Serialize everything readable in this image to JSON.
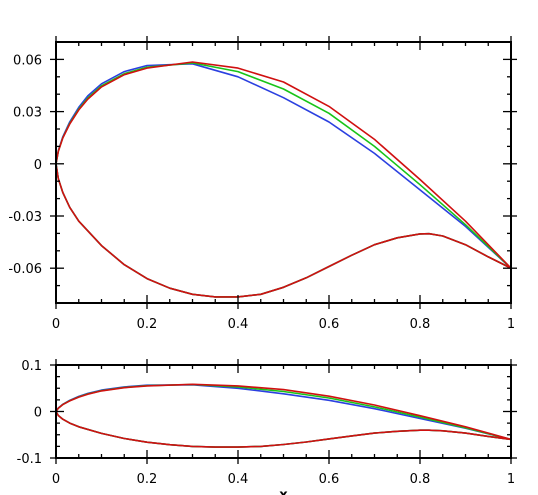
{
  "chart_data": [
    {
      "type": "line",
      "title": "",
      "xlabel": "",
      "ylabel": "",
      "xlim": [
        0,
        1
      ],
      "ylim": [
        -0.08,
        0.07
      ],
      "xticks": [
        0,
        0.2,
        0.4,
        0.6,
        0.8,
        1
      ],
      "xtick_labels": [
        "0",
        "0.2",
        "0.4",
        "0.6",
        "0.8",
        "1"
      ],
      "yticks": [
        -0.06,
        -0.03,
        0,
        0.03,
        0.06
      ],
      "ytick_labels": [
        "-0.06",
        "-0.03",
        "0",
        "0.03",
        "0.06"
      ],
      "grid": false,
      "series": [
        {
          "color": "#2b40e0",
          "x": [
            1,
            0.9,
            0.8,
            0.7,
            0.6,
            0.5,
            0.4,
            0.3,
            0.2,
            0.15,
            0.1,
            0.07,
            0.05,
            0.03,
            0.015,
            0.005,
            0,
            0.005,
            0.015,
            0.03,
            0.05,
            0.1,
            0.15,
            0.2,
            0.25,
            0.3,
            0.35,
            0.4,
            0.45,
            0.5,
            0.55,
            0.6,
            0.65,
            0.7,
            0.75,
            0.8,
            0.82,
            0.85,
            0.9,
            0.95,
            1
          ],
          "y": [
            -0.06,
            -0.036,
            -0.015,
            0.006,
            0.024,
            0.038,
            0.05,
            0.0575,
            0.0565,
            0.053,
            0.046,
            0.039,
            0.0325,
            0.024,
            0.0155,
            0.0075,
            0,
            -0.0085,
            -0.0165,
            -0.025,
            -0.033,
            -0.047,
            -0.058,
            -0.066,
            -0.0715,
            -0.075,
            -0.0765,
            -0.0765,
            -0.075,
            -0.071,
            -0.0655,
            -0.059,
            -0.0525,
            -0.0465,
            -0.0425,
            -0.0403,
            -0.0402,
            -0.0415,
            -0.0465,
            -0.0535,
            -0.06
          ]
        },
        {
          "color": "#18c418",
          "x": [
            1,
            0.9,
            0.8,
            0.7,
            0.6,
            0.5,
            0.4,
            0.3,
            0.2,
            0.15,
            0.1,
            0.07,
            0.05,
            0.03,
            0.015,
            0.005,
            0,
            0.005,
            0.015,
            0.03,
            0.05,
            0.1,
            0.15,
            0.2,
            0.25,
            0.3,
            0.35,
            0.4,
            0.45,
            0.5,
            0.55,
            0.6,
            0.65,
            0.7,
            0.75,
            0.8,
            0.82,
            0.85,
            0.9,
            0.95,
            1
          ],
          "y": [
            -0.06,
            -0.035,
            -0.012,
            0.01,
            0.029,
            0.043,
            0.053,
            0.058,
            0.0555,
            0.0518,
            0.0448,
            0.0378,
            0.0315,
            0.0232,
            0.015,
            0.0072,
            0,
            -0.0085,
            -0.0165,
            -0.025,
            -0.033,
            -0.047,
            -0.058,
            -0.066,
            -0.0715,
            -0.075,
            -0.0765,
            -0.0765,
            -0.075,
            -0.071,
            -0.0655,
            -0.059,
            -0.0525,
            -0.0465,
            -0.0425,
            -0.0403,
            -0.0402,
            -0.0415,
            -0.0465,
            -0.0535,
            -0.06
          ]
        },
        {
          "color": "#d01010",
          "x": [
            1,
            0.9,
            0.8,
            0.7,
            0.6,
            0.5,
            0.4,
            0.3,
            0.2,
            0.15,
            0.1,
            0.07,
            0.05,
            0.03,
            0.015,
            0.005,
            0,
            0.005,
            0.015,
            0.03,
            0.05,
            0.1,
            0.15,
            0.2,
            0.25,
            0.3,
            0.35,
            0.4,
            0.45,
            0.5,
            0.55,
            0.6,
            0.65,
            0.7,
            0.75,
            0.8,
            0.82,
            0.85,
            0.9,
            0.95,
            1
          ],
          "y": [
            -0.06,
            -0.033,
            -0.009,
            0.014,
            0.033,
            0.047,
            0.055,
            0.0585,
            0.055,
            0.0512,
            0.0442,
            0.0372,
            0.031,
            0.0228,
            0.0148,
            0.0071,
            0,
            -0.0085,
            -0.0165,
            -0.025,
            -0.033,
            -0.047,
            -0.058,
            -0.066,
            -0.0715,
            -0.075,
            -0.0765,
            -0.0765,
            -0.075,
            -0.071,
            -0.0655,
            -0.059,
            -0.0525,
            -0.0465,
            -0.0425,
            -0.0403,
            -0.0402,
            -0.0415,
            -0.0465,
            -0.0535,
            -0.06
          ]
        }
      ]
    },
    {
      "type": "line",
      "title": "",
      "xlabel": "x",
      "ylabel": "",
      "xlim": [
        0,
        1
      ],
      "ylim": [
        -0.1,
        0.1
      ],
      "xticks": [
        0,
        0.2,
        0.4,
        0.6,
        0.8,
        1
      ],
      "xtick_labels": [
        "0",
        "0.2",
        "0.4",
        "0.6",
        "0.8",
        "1"
      ],
      "yticks": [
        -0.1,
        0,
        0.1
      ],
      "ytick_labels": [
        "-0.1",
        "0",
        "0.1"
      ],
      "grid": false,
      "series": [
        {
          "color": "#2b40e0",
          "x": [
            1,
            0.9,
            0.8,
            0.7,
            0.6,
            0.5,
            0.4,
            0.3,
            0.2,
            0.15,
            0.1,
            0.07,
            0.05,
            0.03,
            0.015,
            0.005,
            0,
            0.005,
            0.015,
            0.03,
            0.05,
            0.1,
            0.15,
            0.2,
            0.25,
            0.3,
            0.35,
            0.4,
            0.45,
            0.5,
            0.55,
            0.6,
            0.65,
            0.7,
            0.75,
            0.8,
            0.82,
            0.85,
            0.9,
            0.95,
            1
          ],
          "y": [
            -0.06,
            -0.036,
            -0.015,
            0.006,
            0.024,
            0.038,
            0.05,
            0.0575,
            0.0565,
            0.053,
            0.046,
            0.039,
            0.0325,
            0.024,
            0.0155,
            0.0075,
            0,
            -0.0085,
            -0.0165,
            -0.025,
            -0.033,
            -0.047,
            -0.058,
            -0.066,
            -0.0715,
            -0.075,
            -0.0765,
            -0.0765,
            -0.075,
            -0.071,
            -0.0655,
            -0.059,
            -0.0525,
            -0.0465,
            -0.0425,
            -0.0403,
            -0.0402,
            -0.0415,
            -0.0465,
            -0.0535,
            -0.06
          ]
        },
        {
          "color": "#18c418",
          "x": [
            1,
            0.9,
            0.8,
            0.7,
            0.6,
            0.5,
            0.4,
            0.3,
            0.2,
            0.15,
            0.1,
            0.07,
            0.05,
            0.03,
            0.015,
            0.005,
            0,
            0.005,
            0.015,
            0.03,
            0.05,
            0.1,
            0.15,
            0.2,
            0.25,
            0.3,
            0.35,
            0.4,
            0.45,
            0.5,
            0.55,
            0.6,
            0.65,
            0.7,
            0.75,
            0.8,
            0.82,
            0.85,
            0.9,
            0.95,
            1
          ],
          "y": [
            -0.06,
            -0.035,
            -0.012,
            0.01,
            0.029,
            0.043,
            0.053,
            0.058,
            0.0555,
            0.0518,
            0.0448,
            0.0378,
            0.0315,
            0.0232,
            0.015,
            0.0072,
            0,
            -0.0085,
            -0.0165,
            -0.025,
            -0.033,
            -0.047,
            -0.058,
            -0.066,
            -0.0715,
            -0.075,
            -0.0765,
            -0.0765,
            -0.075,
            -0.071,
            -0.0655,
            -0.059,
            -0.0525,
            -0.0465,
            -0.0425,
            -0.0403,
            -0.0402,
            -0.0415,
            -0.0465,
            -0.0535,
            -0.06
          ]
        },
        {
          "color": "#d01010",
          "x": [
            1,
            0.9,
            0.8,
            0.7,
            0.6,
            0.5,
            0.4,
            0.3,
            0.2,
            0.15,
            0.1,
            0.07,
            0.05,
            0.03,
            0.015,
            0.005,
            0,
            0.005,
            0.015,
            0.03,
            0.05,
            0.1,
            0.15,
            0.2,
            0.25,
            0.3,
            0.35,
            0.4,
            0.45,
            0.5,
            0.55,
            0.6,
            0.65,
            0.7,
            0.75,
            0.8,
            0.82,
            0.85,
            0.9,
            0.95,
            1
          ],
          "y": [
            -0.06,
            -0.033,
            -0.009,
            0.014,
            0.033,
            0.047,
            0.055,
            0.0585,
            0.055,
            0.0512,
            0.0442,
            0.0372,
            0.031,
            0.0228,
            0.0148,
            0.0071,
            0,
            -0.0085,
            -0.0165,
            -0.025,
            -0.033,
            -0.047,
            -0.058,
            -0.066,
            -0.0715,
            -0.075,
            -0.0765,
            -0.0765,
            -0.075,
            -0.071,
            -0.0655,
            -0.059,
            -0.0525,
            -0.0465,
            -0.0425,
            -0.0403,
            -0.0402,
            -0.0415,
            -0.0465,
            -0.0535,
            -0.06
          ]
        }
      ]
    }
  ]
}
